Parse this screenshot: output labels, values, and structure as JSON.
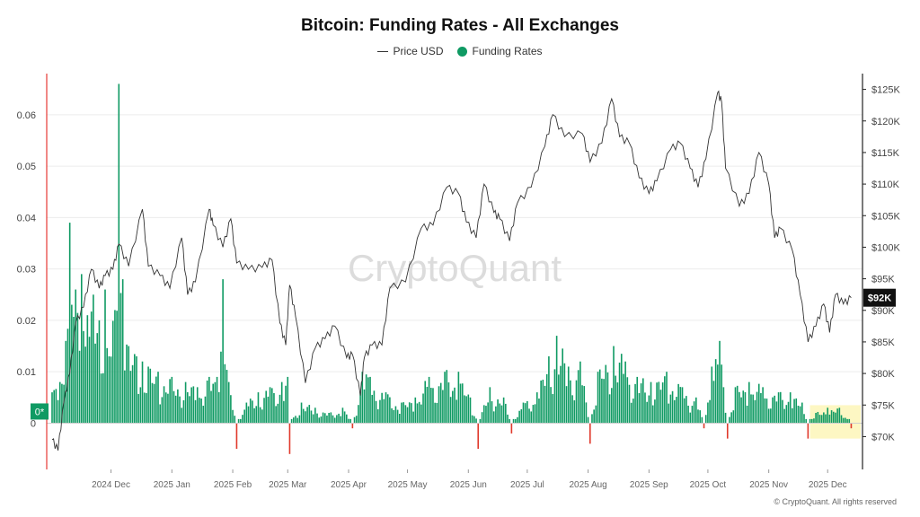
{
  "title": "Bitcoin: Funding Rates - All Exchanges",
  "legend": {
    "price": "Price USD",
    "funding": "Funding Rates"
  },
  "watermark": "CryptoQuant",
  "copyright": "© CryptoQuant. All rights reserved",
  "colors": {
    "positive": "#0f9a63",
    "negative": "#e0392b",
    "price": "#333333",
    "accent_line": "#e53935",
    "highlight": "#fdf7c3",
    "badge": "#0f9a63"
  },
  "chart_data": {
    "type": "bar",
    "title": "Bitcoin: Funding Rates - All Exchanges",
    "x_range": [
      "2024-11-01",
      "2025-12-16"
    ],
    "x_ticks": [
      "2024 Dec",
      "2025 Jan",
      "2025 Feb",
      "2025 Mar",
      "2025 Apr",
      "2025 May",
      "2025 Jun",
      "2025 Jul",
      "2025 Aug",
      "2025 Sep",
      "2025 Oct",
      "2025 Nov",
      "2025 Dec"
    ],
    "left_axis": {
      "ticks": [
        "0",
        "0.01",
        "0.02",
        "0.03",
        "0.04",
        "0.05",
        "0.06"
      ],
      "ylim": [
        -0.009,
        0.068
      ]
    },
    "right_axis": {
      "ticks": [
        "$70K",
        "$75K",
        "$80K",
        "$85K",
        "$90K",
        "$95K",
        "$100K",
        "$105K",
        "$110K",
        "$115K",
        "$120K",
        "$125K"
      ],
      "ylim": [
        64800,
        127500
      ]
    },
    "zero_badge": "0*",
    "current_price_label": "$92K",
    "series": [
      {
        "name": "Funding Rates",
        "kind": "bar",
        "points": [
          [
            "2024-11-01",
            0.006
          ],
          [
            "2024-11-05",
            0.008
          ],
          [
            "2024-11-08",
            0.016
          ],
          [
            "2024-11-10",
            0.039
          ],
          [
            "2024-11-13",
            0.026
          ],
          [
            "2024-11-16",
            0.029
          ],
          [
            "2024-11-19",
            0.021
          ],
          [
            "2024-11-22",
            0.025
          ],
          [
            "2024-11-25",
            0.02
          ],
          [
            "2024-11-28",
            0.026
          ],
          [
            "2024-11-30",
            0.013
          ],
          [
            "2024-12-03",
            0.022
          ],
          [
            "2024-12-05",
            0.066
          ],
          [
            "2024-12-07",
            0.028
          ],
          [
            "2024-12-10",
            0.015
          ],
          [
            "2024-12-14",
            0.013
          ],
          [
            "2024-12-17",
            0.012
          ],
          [
            "2024-12-20",
            0.011
          ],
          [
            "2024-12-25",
            0.01
          ],
          [
            "2025-01-01",
            0.009
          ],
          [
            "2025-01-08",
            0.008
          ],
          [
            "2025-01-14",
            0.007
          ],
          [
            "2025-01-20",
            0.009
          ],
          [
            "2025-01-24",
            0.009
          ],
          [
            "2025-01-27",
            0.028
          ],
          [
            "2025-01-30",
            0.008
          ],
          [
            "2025-02-03",
            -0.005
          ],
          [
            "2025-02-08",
            0.004
          ],
          [
            "2025-02-14",
            0.006
          ],
          [
            "2025-02-20",
            0.007
          ],
          [
            "2025-02-26",
            0.008
          ],
          [
            "2025-03-01",
            0.009
          ],
          [
            "2025-03-02",
            -0.006
          ],
          [
            "2025-03-08",
            0.004
          ],
          [
            "2025-03-15",
            0.003
          ],
          [
            "2025-03-22",
            0.002
          ],
          [
            "2025-03-29",
            0.003
          ],
          [
            "2025-04-03",
            -0.001
          ],
          [
            "2025-04-08",
            0.01
          ],
          [
            "2025-04-12",
            0.009
          ],
          [
            "2025-04-20",
            0.006
          ],
          [
            "2025-04-28",
            0.004
          ],
          [
            "2025-05-05",
            0.005
          ],
          [
            "2025-05-12",
            0.009
          ],
          [
            "2025-05-20",
            0.01
          ],
          [
            "2025-05-27",
            0.01
          ],
          [
            "2025-06-02",
            0.005
          ],
          [
            "2025-06-06",
            -0.005
          ],
          [
            "2025-06-12",
            0.007
          ],
          [
            "2025-06-19",
            0.005
          ],
          [
            "2025-06-23",
            -0.002
          ],
          [
            "2025-06-29",
            0.004
          ],
          [
            "2025-07-06",
            0.006
          ],
          [
            "2025-07-12",
            0.013
          ],
          [
            "2025-07-16",
            0.017
          ],
          [
            "2025-07-22",
            0.011
          ],
          [
            "2025-07-28",
            0.012
          ],
          [
            "2025-08-02",
            -0.004
          ],
          [
            "2025-08-06",
            0.01
          ],
          [
            "2025-08-14",
            0.015
          ],
          [
            "2025-08-20",
            0.012
          ],
          [
            "2025-08-26",
            0.009
          ],
          [
            "2025-09-02",
            0.008
          ],
          [
            "2025-09-10",
            0.01
          ],
          [
            "2025-09-18",
            0.007
          ],
          [
            "2025-09-25",
            0.005
          ],
          [
            "2025-09-29",
            -0.001
          ],
          [
            "2025-10-03",
            0.011
          ],
          [
            "2025-10-07",
            0.016
          ],
          [
            "2025-10-11",
            -0.003
          ],
          [
            "2025-10-15",
            0.007
          ],
          [
            "2025-10-22",
            0.008
          ],
          [
            "2025-10-29",
            0.007
          ],
          [
            "2025-11-06",
            0.006
          ],
          [
            "2025-11-12",
            0.006
          ],
          [
            "2025-11-18",
            0.004
          ],
          [
            "2025-11-21",
            -0.003
          ],
          [
            "2025-11-25",
            0.002
          ],
          [
            "2025-12-01",
            0.003
          ],
          [
            "2025-12-07",
            0.003
          ],
          [
            "2025-12-13",
            -0.001
          ]
        ]
      },
      {
        "name": "Price USD",
        "kind": "line",
        "points": [
          [
            "2024-11-01",
            69500
          ],
          [
            "2024-11-04",
            67800
          ],
          [
            "2024-11-07",
            75500
          ],
          [
            "2024-11-10",
            80000
          ],
          [
            "2024-11-13",
            88000
          ],
          [
            "2024-11-17",
            90500
          ],
          [
            "2024-11-21",
            96500
          ],
          [
            "2024-11-25",
            93500
          ],
          [
            "2024-11-28",
            95500
          ],
          [
            "2024-12-02",
            96500
          ],
          [
            "2024-12-05",
            100500
          ],
          [
            "2024-12-10",
            97000
          ],
          [
            "2024-12-17",
            106000
          ],
          [
            "2024-12-20",
            97000
          ],
          [
            "2024-12-26",
            95500
          ],
          [
            "2024-12-31",
            93500
          ],
          [
            "2025-01-06",
            101500
          ],
          [
            "2025-01-09",
            92500
          ],
          [
            "2025-01-13",
            94500
          ],
          [
            "2025-01-20",
            106000
          ],
          [
            "2025-01-22",
            103500
          ],
          [
            "2025-01-27",
            100000
          ],
          [
            "2025-01-31",
            104500
          ],
          [
            "2025-02-03",
            97500
          ],
          [
            "2025-02-09",
            96500
          ],
          [
            "2025-02-16",
            96800
          ],
          [
            "2025-02-21",
            98000
          ],
          [
            "2025-02-25",
            88000
          ],
          [
            "2025-02-28",
            84500
          ],
          [
            "2025-03-02",
            94000
          ],
          [
            "2025-03-05",
            89000
          ],
          [
            "2025-03-10",
            78500
          ],
          [
            "2025-03-15",
            84000
          ],
          [
            "2025-03-20",
            85500
          ],
          [
            "2025-03-25",
            87500
          ],
          [
            "2025-03-31",
            82500
          ],
          [
            "2025-04-03",
            83000
          ],
          [
            "2025-04-07",
            76500
          ],
          [
            "2025-04-09",
            82500
          ],
          [
            "2025-04-13",
            84500
          ],
          [
            "2025-04-18",
            84500
          ],
          [
            "2025-04-22",
            93500
          ],
          [
            "2025-04-30",
            94500
          ],
          [
            "2025-05-08",
            103000
          ],
          [
            "2025-05-14",
            103500
          ],
          [
            "2025-05-21",
            109500
          ],
          [
            "2025-05-27",
            108500
          ],
          [
            "2025-05-31",
            104000
          ],
          [
            "2025-06-05",
            101500
          ],
          [
            "2025-06-09",
            110000
          ],
          [
            "2025-06-14",
            105500
          ],
          [
            "2025-06-17",
            104500
          ],
          [
            "2025-06-22",
            101000
          ],
          [
            "2025-06-26",
            107000
          ],
          [
            "2025-07-03",
            109500
          ],
          [
            "2025-07-10",
            116000
          ],
          [
            "2025-07-14",
            121000
          ],
          [
            "2025-07-20",
            117500
          ],
          [
            "2025-07-29",
            118000
          ],
          [
            "2025-08-02",
            113500
          ],
          [
            "2025-08-08",
            116500
          ],
          [
            "2025-08-13",
            123500
          ],
          [
            "2025-08-17",
            117500
          ],
          [
            "2025-08-22",
            116500
          ],
          [
            "2025-08-27",
            111000
          ],
          [
            "2025-09-01",
            108500
          ],
          [
            "2025-09-05",
            110500
          ],
          [
            "2025-09-12",
            115500
          ],
          [
            "2025-09-17",
            116500
          ],
          [
            "2025-09-22",
            112500
          ],
          [
            "2025-09-26",
            109500
          ],
          [
            "2025-09-30",
            114000
          ],
          [
            "2025-10-06",
            124500
          ],
          [
            "2025-10-08",
            123000
          ],
          [
            "2025-10-10",
            112500
          ],
          [
            "2025-10-17",
            106500
          ],
          [
            "2025-10-22",
            108500
          ],
          [
            "2025-10-27",
            115000
          ],
          [
            "2025-11-01",
            110000
          ],
          [
            "2025-11-04",
            101500
          ],
          [
            "2025-11-07",
            103000
          ],
          [
            "2025-11-13",
            99500
          ],
          [
            "2025-11-17",
            92500
          ],
          [
            "2025-11-21",
            85000
          ],
          [
            "2025-11-25",
            87500
          ],
          [
            "2025-11-29",
            91000
          ],
          [
            "2025-12-02",
            86500
          ],
          [
            "2025-12-05",
            92500
          ],
          [
            "2025-12-09",
            91000
          ],
          [
            "2025-12-13",
            92000
          ]
        ]
      }
    ]
  }
}
